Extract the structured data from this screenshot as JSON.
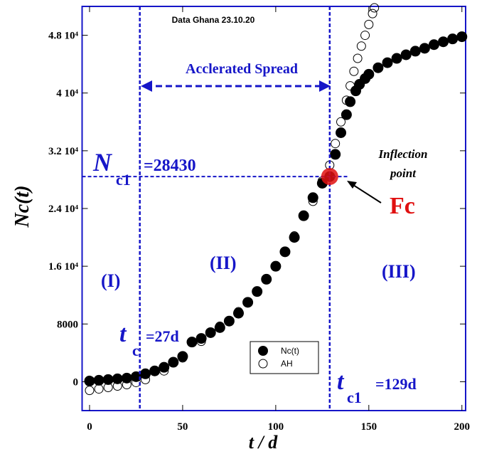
{
  "chart_data": {
    "type": "scatter",
    "title": "Data Ghana 23.10.20",
    "x_label": "t / d",
    "y_label": "Nc(t)",
    "xlim": [
      -4,
      202
    ],
    "xticks": [
      0,
      50,
      100,
      150,
      200
    ],
    "ylim": [
      -4000,
      52000
    ],
    "yticks": [
      0,
      8000,
      {
        "value": 16000,
        "label": "1.6 10⁴"
      },
      {
        "value": 24000,
        "label": "2.4 10⁴"
      },
      {
        "value": 32000,
        "label": "3.2 10⁴"
      },
      {
        "value": 40000,
        "label": "4 10⁴"
      },
      {
        "value": 48000,
        "label": "4.8 10⁴"
      }
    ],
    "series": [
      {
        "name": "Nc(t)",
        "color": "#000000",
        "x": [
          0,
          5,
          10,
          15,
          20,
          25,
          30,
          35,
          40,
          45,
          50,
          55,
          60,
          65,
          70,
          75,
          80,
          85,
          90,
          95,
          100,
          105,
          110,
          115,
          120,
          125,
          129,
          132,
          135,
          138,
          140,
          143,
          145,
          148,
          150,
          155,
          160,
          165,
          170,
          175,
          180,
          185,
          190,
          195,
          200
        ],
        "values": [
          100,
          200,
          300,
          400,
          500,
          700,
          1100,
          1500,
          2000,
          2700,
          3500,
          5500,
          6000,
          6800,
          7500,
          8400,
          9500,
          11000,
          12500,
          14200,
          16000,
          18000,
          20000,
          23000,
          25500,
          27500,
          28430,
          31500,
          34500,
          37000,
          38800,
          40300,
          41200,
          42000,
          42600,
          43500,
          44200,
          44800,
          45300,
          45800,
          46200,
          46700,
          47100,
          47500,
          47800
        ]
      },
      {
        "name": "AH",
        "color": "#000000",
        "x": [
          0,
          5,
          10,
          15,
          20,
          25,
          30,
          40,
          50,
          60,
          70,
          80,
          90,
          100,
          110,
          120,
          125,
          129,
          132,
          135,
          138,
          140,
          142,
          144,
          146,
          148,
          150,
          152,
          153
        ],
        "values": [
          -1200,
          -1000,
          -800,
          -600,
          -400,
          -100,
          300,
          1500,
          3300,
          5600,
          7700,
          9700,
          12500,
          16000,
          20200,
          25000,
          27800,
          30000,
          33000,
          36000,
          39000,
          41000,
          43000,
          44800,
          46500,
          48000,
          49500,
          51000,
          51800
        ]
      }
    ],
    "vlines": [
      27,
      129
    ],
    "hline": 28430,
    "legend": "lower center",
    "annotations": {
      "spread": "Acclerated Spread",
      "n": "N",
      "n_sub": "c1",
      "n_val": "=28430",
      "inflection1": "Inflection",
      "inflection2": "point",
      "fc": "Fc",
      "region1": "(I)",
      "region2": "(II)",
      "region3": "(III)",
      "tc": "t",
      "tc_sub": "c",
      "tc_val": "=27d",
      "tc1": "t",
      "tc1_sub": "c1",
      "tc1_val": "=129d"
    }
  }
}
